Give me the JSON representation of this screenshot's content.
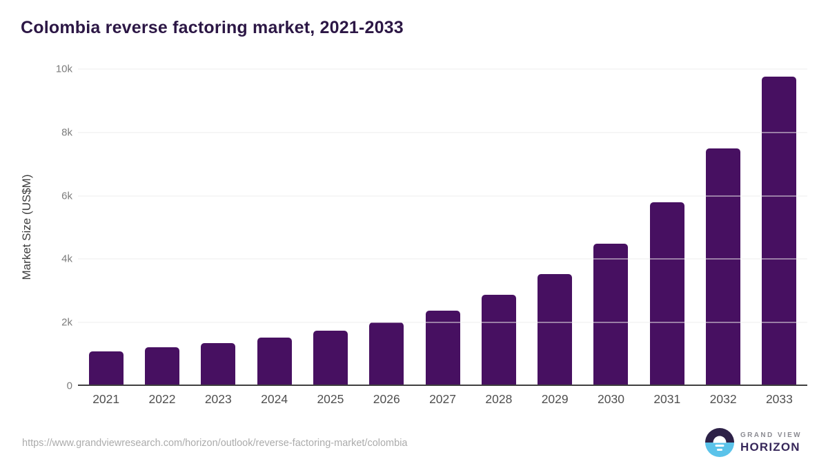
{
  "page": {
    "title": "Colombia reverse factoring market, 2021-2033"
  },
  "chart_data": {
    "type": "bar",
    "title": "Colombia reverse factoring market, 2021-2033",
    "categories": [
      "2021",
      "2022",
      "2023",
      "2024",
      "2025",
      "2026",
      "2027",
      "2028",
      "2029",
      "2030",
      "2031",
      "2032",
      "2033"
    ],
    "values": [
      1080,
      1210,
      1350,
      1520,
      1740,
      2010,
      2380,
      2870,
      3540,
      4480,
      5790,
      7500,
      9760
    ],
    "xlabel": "",
    "ylabel": "Market Size (US$M)",
    "ylim": [
      0,
      10000
    ],
    "y_ticks": [
      {
        "label": "0",
        "value": 0
      },
      {
        "label": "2k",
        "value": 2000
      },
      {
        "label": "4k",
        "value": 4000
      },
      {
        "label": "6k",
        "value": 6000
      },
      {
        "label": "8k",
        "value": 8000
      },
      {
        "label": "10k",
        "value": 10000
      }
    ],
    "grid": "horizontal-on",
    "legend": "none",
    "bar_color": "#471061"
  },
  "footer": {
    "source_url": "https://www.grandviewresearch.com/horizon/outlook/reverse-factoring-market/colombia",
    "logo": {
      "line1": "GRAND VIEW",
      "line2": "HORIZON"
    }
  },
  "colors": {
    "bar": "#471061",
    "title": "#2c1745",
    "gridline": "#ececec",
    "axis_line": "#3f3f3f",
    "y_tick_text": "#7c7c7c",
    "x_tick_text": "#4f4f4f",
    "url_text": "#ababab",
    "logo_dark": "#2d2147",
    "logo_blue": "#5bc3ea"
  }
}
